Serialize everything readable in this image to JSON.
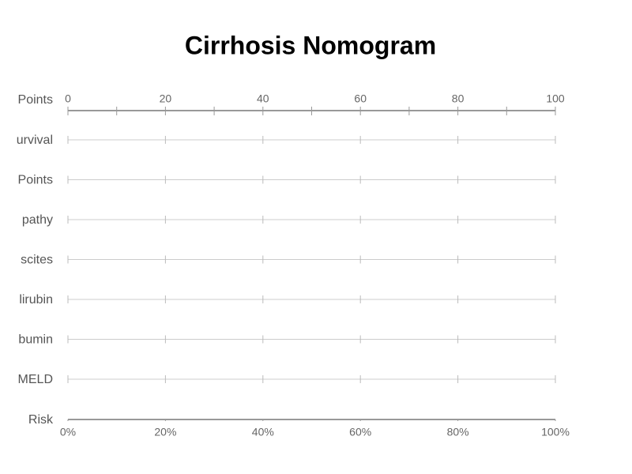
{
  "title": "Cirrhosis Nomogram",
  "points_axis": {
    "label": "Points",
    "xlim": [
      0,
      100
    ],
    "xticks": [
      0,
      20,
      40,
      60,
      80,
      100
    ],
    "minor_ticks": [
      10,
      30,
      50,
      70,
      90
    ]
  },
  "rows": [
    "urvival",
    "Points",
    "pathy",
    "scites",
    "lirubin",
    "bumin",
    "MELD"
  ],
  "risk_axis": {
    "label": "Risk",
    "xlim": [
      0,
      100
    ],
    "xticks": [
      {
        "value": 0,
        "label": "0%"
      },
      {
        "value": 20,
        "label": "20%"
      },
      {
        "value": 40,
        "label": "40%"
      },
      {
        "value": 60,
        "label": "60%"
      },
      {
        "value": 80,
        "label": "80%"
      },
      {
        "value": 100,
        "label": "100%"
      }
    ]
  }
}
